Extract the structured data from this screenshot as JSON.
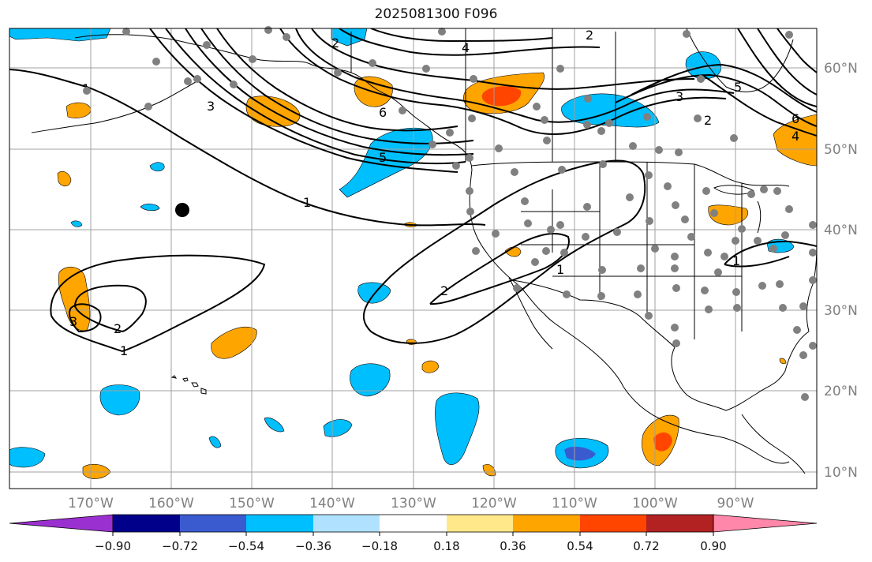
{
  "title": "2025081300 F096",
  "map": {
    "projection": "PlateCarree",
    "lon_range": [
      -180,
      -80
    ],
    "lat_range": [
      8,
      65
    ],
    "gridlines": true
  },
  "lat_labels": [
    "60°N",
    "50°N",
    "40°N",
    "30°N",
    "20°N",
    "10°N"
  ],
  "lon_labels": [
    "170°W",
    "160°W",
    "150°W",
    "140°W",
    "130°W",
    "120°W",
    "110°W",
    "100°W",
    "90°W"
  ],
  "colorbar": {
    "ticks": [
      "−0.90",
      "−0.72",
      "−0.54",
      "−0.36",
      "−0.18",
      "0.18",
      "0.36",
      "0.54",
      "0.72",
      "0.90"
    ],
    "colors": [
      "#9b30d0",
      "#00008b",
      "#3a5bd0",
      "#00bfff",
      "#b0e2ff",
      "#ffffff",
      "#ffe88a",
      "#ffa500",
      "#ff4500",
      "#b22222",
      "#ff88aa"
    ],
    "extend": "both"
  },
  "contour_labels": [
    "1",
    "2",
    "3",
    "4",
    "5",
    "6"
  ],
  "colors": {
    "orange": "#ffa500",
    "red": "#ff4500",
    "cyan": "#00bfff",
    "blue": "#3a5bd0",
    "station_dots": "#808080",
    "marker": "#000000"
  }
}
